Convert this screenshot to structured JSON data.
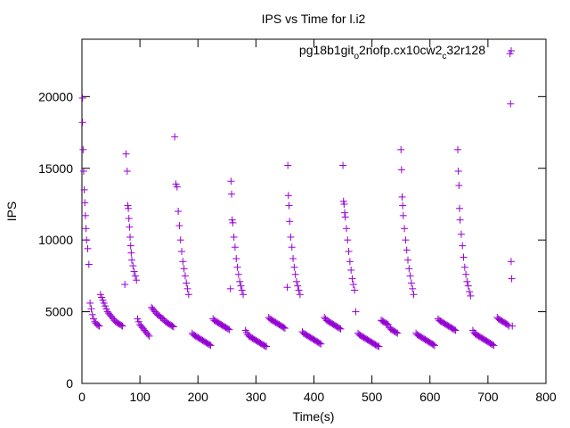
{
  "chart_data": {
    "type": "scatter",
    "title": "IPS vs Time for l.i2",
    "xlabel": "Time(s)",
    "ylabel": "IPS",
    "xlim": [
      0,
      800
    ],
    "ylim": [
      0,
      24000
    ],
    "xticks": [
      0,
      100,
      200,
      300,
      400,
      500,
      600,
      700,
      800
    ],
    "yticks": [
      0,
      5000,
      10000,
      15000,
      20000
    ],
    "grid": false,
    "legend_position": "top-right",
    "series": [
      {
        "name": "pg18b1git_o2nofp.cx10cw2_c32r128",
        "legend_parts": [
          "pg18b1git",
          "o",
          "2nofp.cx10cw2",
          "c",
          "32r128"
        ],
        "color": "#9400d3",
        "marker": "plus",
        "x": [
          1,
          1,
          2,
          3,
          4,
          5,
          6,
          7,
          8,
          10,
          12,
          14,
          16,
          18,
          20,
          22,
          24,
          26,
          28,
          30,
          32,
          34,
          36,
          38,
          40,
          42,
          44,
          46,
          48,
          50,
          52,
          54,
          56,
          58,
          60,
          62,
          64,
          66,
          68,
          70,
          74,
          76,
          78,
          79,
          80,
          81,
          82,
          83,
          84,
          85,
          86,
          88,
          90,
          92,
          94,
          96,
          98,
          100,
          102,
          104,
          106,
          108,
          110,
          112,
          114,
          116,
          120,
          122,
          124,
          126,
          128,
          130,
          132,
          134,
          136,
          138,
          140,
          142,
          144,
          146,
          148,
          150,
          152,
          154,
          156,
          158,
          160,
          162,
          164,
          166,
          168,
          170,
          172,
          174,
          176,
          178,
          180,
          182,
          184,
          190,
          192,
          194,
          196,
          198,
          200,
          202,
          204,
          206,
          208,
          210,
          212,
          214,
          216,
          218,
          220,
          222,
          226,
          228,
          230,
          232,
          234,
          236,
          238,
          240,
          242,
          244,
          246,
          248,
          250,
          252,
          254,
          256,
          257,
          258,
          259,
          260,
          262,
          264,
          266,
          268,
          270,
          272,
          274,
          276,
          278,
          282,
          284,
          286,
          288,
          290,
          292,
          294,
          296,
          298,
          300,
          302,
          304,
          306,
          308,
          310,
          312,
          314,
          316,
          318,
          322,
          324,
          326,
          328,
          330,
          332,
          334,
          336,
          338,
          340,
          342,
          344,
          346,
          348,
          350,
          354,
          355,
          356,
          357,
          358,
          360,
          362,
          364,
          366,
          368,
          370,
          372,
          374,
          376,
          380,
          382,
          384,
          386,
          388,
          390,
          392,
          394,
          396,
          398,
          400,
          402,
          404,
          406,
          408,
          410,
          412,
          418,
          420,
          422,
          424,
          426,
          428,
          430,
          432,
          434,
          436,
          438,
          440,
          442,
          444,
          446,
          450,
          451,
          452,
          453,
          454,
          456,
          458,
          460,
          462,
          464,
          466,
          468,
          470,
          472,
          476,
          478,
          480,
          482,
          484,
          486,
          488,
          490,
          492,
          494,
          496,
          498,
          500,
          502,
          504,
          506,
          508,
          510,
          512,
          516,
          518,
          520,
          522,
          524,
          526,
          528,
          530,
          532,
          534,
          536,
          538,
          540,
          542,
          544,
          550,
          551,
          552,
          553,
          554,
          556,
          558,
          560,
          562,
          564,
          566,
          568,
          570,
          572,
          576,
          578,
          580,
          582,
          584,
          586,
          588,
          590,
          592,
          594,
          596,
          598,
          600,
          602,
          604,
          606,
          608,
          614,
          616,
          618,
          620,
          622,
          624,
          626,
          628,
          630,
          632,
          634,
          636,
          638,
          640,
          642,
          644,
          648,
          649,
          650,
          651,
          652,
          654,
          656,
          658,
          660,
          662,
          664,
          666,
          668,
          670,
          674,
          676,
          678,
          680,
          682,
          684,
          686,
          688,
          690,
          692,
          694,
          696,
          698,
          700,
          702,
          704,
          706,
          708,
          710,
          716,
          718,
          720,
          722,
          724,
          726,
          728,
          730,
          732,
          734,
          736,
          738,
          739,
          740,
          741,
          742
        ],
        "y": [
          19900,
          18200,
          16300,
          14800,
          13500,
          12600,
          11700,
          10800,
          10000,
          9400,
          8300,
          5600,
          5200,
          4800,
          4500,
          4300,
          4200,
          4100,
          4050,
          4000,
          6200,
          6000,
          5800,
          5600,
          5400,
          5200,
          5000,
          4900,
          4800,
          4700,
          4600,
          4500,
          4400,
          4300,
          4250,
          4200,
          4150,
          4100,
          4050,
          4000,
          6900,
          16000,
          14800,
          12400,
          12200,
          11500,
          10900,
          10200,
          9600,
          9100,
          8600,
          8200,
          7800,
          7500,
          7200,
          4500,
          4300,
          4100,
          4000,
          3900,
          3800,
          3700,
          3600,
          3500,
          3400,
          3300,
          5300,
          5200,
          5100,
          5000,
          4900,
          4800,
          4750,
          4700,
          4600,
          4550,
          4500,
          4400,
          4300,
          4250,
          4200,
          4150,
          4100,
          4050,
          4000,
          3950,
          17200,
          13900,
          13700,
          12000,
          11000,
          10000,
          9200,
          8500,
          8000,
          7500,
          7000,
          6600,
          6200,
          3500,
          3400,
          3350,
          3300,
          3250,
          3200,
          3150,
          3100,
          3050,
          3000,
          2950,
          2900,
          2850,
          2800,
          2750,
          2700,
          2650,
          4500,
          4400,
          4350,
          4300,
          4250,
          4200,
          4150,
          4100,
          4050,
          4000,
          3950,
          3900,
          3850,
          3800,
          3750,
          6600,
          14100,
          13200,
          11400,
          11200,
          10200,
          9500,
          8700,
          8100,
          7600,
          7100,
          6800,
          6500,
          6200,
          3700,
          3550,
          3400,
          3300,
          3250,
          3200,
          3150,
          3100,
          3050,
          3000,
          2950,
          2900,
          2850,
          2800,
          2750,
          2700,
          2650,
          2600,
          2580,
          4600,
          4500,
          4450,
          4400,
          4350,
          4300,
          4250,
          4200,
          4150,
          4100,
          4050,
          4000,
          3950,
          3900,
          3850,
          6700,
          15200,
          13100,
          12400,
          11300,
          10200,
          9500,
          8700,
          8100,
          7600,
          7100,
          6800,
          6500,
          6200,
          3600,
          3500,
          3450,
          3400,
          3350,
          3300,
          3250,
          3200,
          3150,
          3100,
          3050,
          3000,
          2950,
          2900,
          2850,
          2800,
          2750,
          4600,
          4500,
          4400,
          4350,
          4300,
          4250,
          4200,
          4150,
          4100,
          4050,
          4000,
          3950,
          3900,
          3850,
          3800,
          15200,
          12700,
          12500,
          11900,
          11600,
          10800,
          10000,
          9200,
          8500,
          7900,
          7300,
          6900,
          6500,
          5000,
          3500,
          3400,
          3350,
          3300,
          3250,
          3200,
          3150,
          3100,
          3050,
          3000,
          2950,
          2900,
          2850,
          2800,
          2750,
          2700,
          2650,
          2600,
          2580,
          4400,
          4350,
          4300,
          4250,
          4200,
          4150,
          4100,
          3900,
          3800,
          3750,
          3700,
          3650,
          3600,
          3550,
          3500,
          16300,
          14900,
          13000,
          12400,
          11700,
          10800,
          10000,
          9300,
          8600,
          8000,
          7500,
          7000,
          6600,
          6200,
          3500,
          3400,
          3350,
          3300,
          3250,
          3200,
          3150,
          3100,
          3050,
          3000,
          2950,
          2900,
          2850,
          2800,
          2750,
          2700,
          2650,
          4500,
          4400,
          4350,
          4300,
          4250,
          4200,
          4150,
          4100,
          4050,
          4000,
          3950,
          3900,
          3850,
          3800,
          3750,
          3700,
          16300,
          14800,
          13800,
          12200,
          11400,
          10400,
          9600,
          8800,
          8100,
          7600,
          7100,
          6800,
          6400,
          6100,
          3700,
          3550,
          3450,
          3400,
          3350,
          3300,
          3250,
          3200,
          3150,
          3100,
          3050,
          3000,
          2950,
          2900,
          2850,
          2800,
          2750,
          2700,
          2650,
          4600,
          4500,
          4450,
          4400,
          4350,
          4300,
          4250,
          4200,
          4150,
          4100,
          4000,
          23000,
          19500,
          8500,
          7300,
          4000
        ]
      }
    ]
  }
}
